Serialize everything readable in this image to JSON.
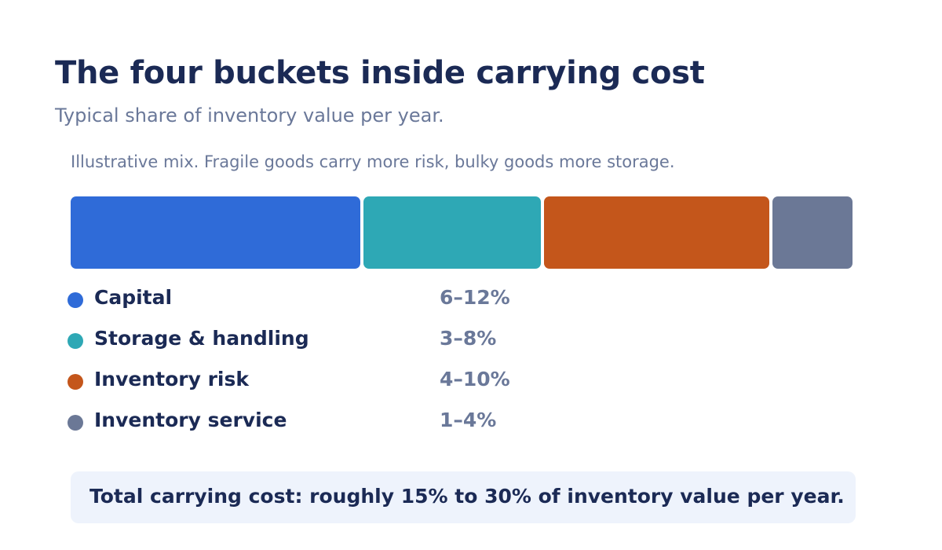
{
  "title": "The four buckets inside carrying cost",
  "subtitle": "Typical share of inventory value per year.",
  "note": "Illustrative mix. Fragile goods carry more risk, bulky goods more storage.",
  "chart_data": {
    "type": "bar",
    "orientation": "horizontal-stacked",
    "series": [
      {
        "name": "Capital",
        "range_label": "6–12%",
        "low": 6,
        "high": 12,
        "color": "#2f6bd8"
      },
      {
        "name": "Storage & handling",
        "range_label": "3–8%",
        "low": 3,
        "high": 8,
        "color": "#2ea8b5"
      },
      {
        "name": "Inventory risk",
        "range_label": "4–10%",
        "low": 4,
        "high": 10,
        "color": "#c4561b"
      },
      {
        "name": "Inventory service",
        "range_label": "1–4%",
        "low": 1,
        "high": 4,
        "color": "#6b7896"
      }
    ],
    "legend_position": "below"
  },
  "total": "Total carrying cost: roughly 15% to 30% of inventory value per year."
}
